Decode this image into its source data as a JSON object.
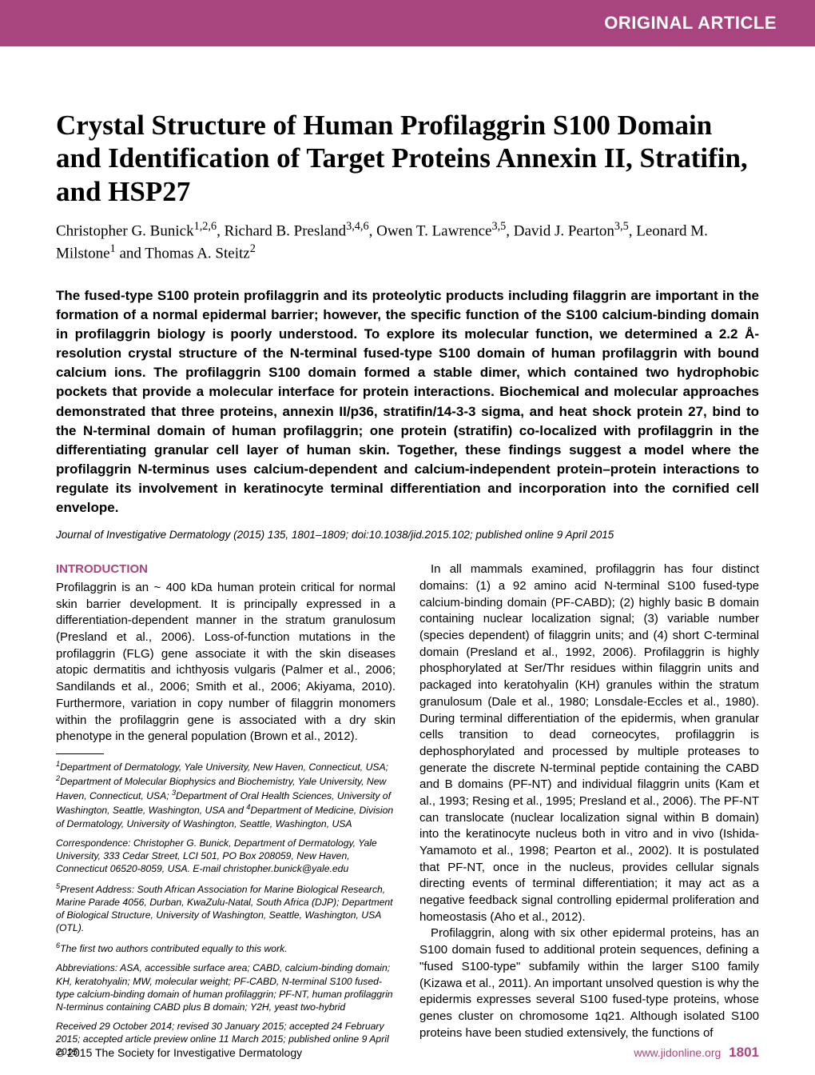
{
  "header": {
    "label": "ORIGINAL ARTICLE",
    "band_color": "#a8457e"
  },
  "title": "Crystal Structure of Human Profilaggrin S100 Domain and Identification of Target Proteins Annexin II, Stratifin, and HSP27",
  "authors_html": "Christopher G. Bunick<sup>1,2,6</sup>, Richard B. Presland<sup>3,4,6</sup>, Owen T. Lawrence<sup>3,5</sup>, David J. Pearton<sup>3,5</sup>, Leonard M. Milstone<sup>1</sup> and Thomas A. Steitz<sup>2</sup>",
  "abstract": "The fused-type S100 protein profilaggrin and its proteolytic products including filaggrin are important in the formation of a normal epidermal barrier; however, the specific function of the S100 calcium-binding domain in profilaggrin biology is poorly understood. To explore its molecular function, we determined a 2.2 Å-resolution crystal structure of the N-terminal fused-type S100 domain of human profilaggrin with bound calcium ions. The profilaggrin S100 domain formed a stable dimer, which contained two hydrophobic pockets that provide a molecular interface for protein interactions. Biochemical and molecular approaches demonstrated that three proteins, annexin II/p36, stratifin/14-3-3 sigma, and heat shock protein 27, bind to the N-terminal domain of human profilaggrin; one protein (stratifin) co-localized with profilaggrin in the differentiating granular cell layer of human skin. Together, these findings suggest a model where the profilaggrin N-terminus uses calcium-dependent and calcium-independent protein–protein interactions to regulate its involvement in keratinocyte terminal differentiation and incorporation into the cornified cell envelope.",
  "journal_line": "Journal of Investigative Dermatology (2015) 135, 1801–1809; doi:10.1038/jid.2015.102; published online 9 April 2015",
  "section_head": "INTRODUCTION",
  "left_col": {
    "p1": "Profilaggrin is an ~ 400 kDa human protein critical for normal skin barrier development. It is principally expressed in a differentiation-dependent manner in the stratum granulosum (Presland et al., 2006). Loss-of-function mutations in the profilaggrin (FLG) gene associate it with the skin diseases atopic dermatitis and ichthyosis vulgaris (Palmer et al., 2006; Sandilands et al., 2006; Smith et al., 2006; Akiyama, 2010). Furthermore, variation in copy number of filaggrin monomers within the profilaggrin gene is associated with a dry skin phenotype in the general population (Brown et al., 2012)."
  },
  "affil_html": "<sup>1</sup>Department of Dermatology, Yale University, New Haven, Connecticut, USA; <sup>2</sup>Department of Molecular Biophysics and Biochemistry, Yale University, New Haven, Connecticut, USA; <sup>3</sup>Department of Oral Health Sciences, University of Washington, Seattle, Washington, USA and <sup>4</sup>Department of Medicine, Division of Dermatology, University of Washington, Seattle, Washington, USA",
  "corresp": "Correspondence: Christopher G. Bunick, Department of Dermatology, Yale University, 333 Cedar Street, LCI 501, PO Box 208059, New Haven, Connecticut 06520-8059, USA. E-mail christopher.bunick@yale.edu",
  "present_html": "<sup>5</sup>Present Address: South African Association for Marine Biological Research, Marine Parade 4056, Durban, KwaZulu-Natal, South Africa (DJP); Department of Biological Structure, University of Washington, Seattle, Washington, USA (OTL).",
  "equal_html": "<sup>6</sup>The first two authors contributed equally to this work.",
  "abbrev": "Abbreviations: ASA, accessible surface area; CABD, calcium-binding domain; KH, keratohyalin; MW, molecular weight; PF-CABD, N-terminal S100 fused-type calcium-binding domain of human profilaggrin; PF-NT, human profilaggrin N-terminus containing CABD plus B domain; Y2H, yeast two-hybrid",
  "received": "Received 29 October 2014; revised 30 January 2015; accepted 24 February 2015; accepted article preview online 11 March 2015; published online 9 April 2015",
  "right_col": {
    "p1": "In all mammals examined, profilaggrin has four distinct domains: (1) a 92 amino acid N-terminal S100 fused-type calcium-binding domain (PF-CABD); (2) highly basic B domain containing nuclear localization signal; (3) variable number (species dependent) of filaggrin units; and (4) short C-terminal domain (Presland et al., 1992, 2006). Profilaggrin is highly phosphorylated at Ser/Thr residues within filaggrin units and packaged into keratohyalin (KH) granules within the stratum granulosum (Dale et al., 1980; Lonsdale-Eccles et al., 1980). During terminal differentiation of the epidermis, when granular cells transition to dead corneocytes, profilaggrin is dephosphorylated and processed by multiple proteases to generate the discrete N-terminal peptide containing the CABD and B domains (PF-NT) and individual filaggrin units (Kam et al., 1993; Resing et al., 1995; Presland et al., 2006). The PF-NT can translocate (nuclear localization signal within B domain) into the keratinocyte nucleus both in vitro and in vivo (Ishida-Yamamoto et al., 1998; Pearton et al., 2002). It is postulated that PF-NT, once in the nucleus, provides cellular signals directing events of terminal differentiation; it may act as a negative feedback signal controlling epidermal proliferation and homeostasis (Aho et al., 2012).",
    "p2": "Profilaggrin, along with six other epidermal proteins, has an S100 domain fused to additional protein sequences, defining a \"fused S100-type\" subfamily within the larger S100 family (Kizawa et al., 2011). An important unsolved question is why the epidermis expresses several S100 fused-type proteins, whose genes cluster on chromosome 1q21. Although isolated S100 proteins have been studied extensively, the functions of"
  },
  "footer": {
    "copyright": "© 2015 The Society for Investigative Dermatology",
    "url": "www.jidonline.org",
    "page": "1801"
  }
}
